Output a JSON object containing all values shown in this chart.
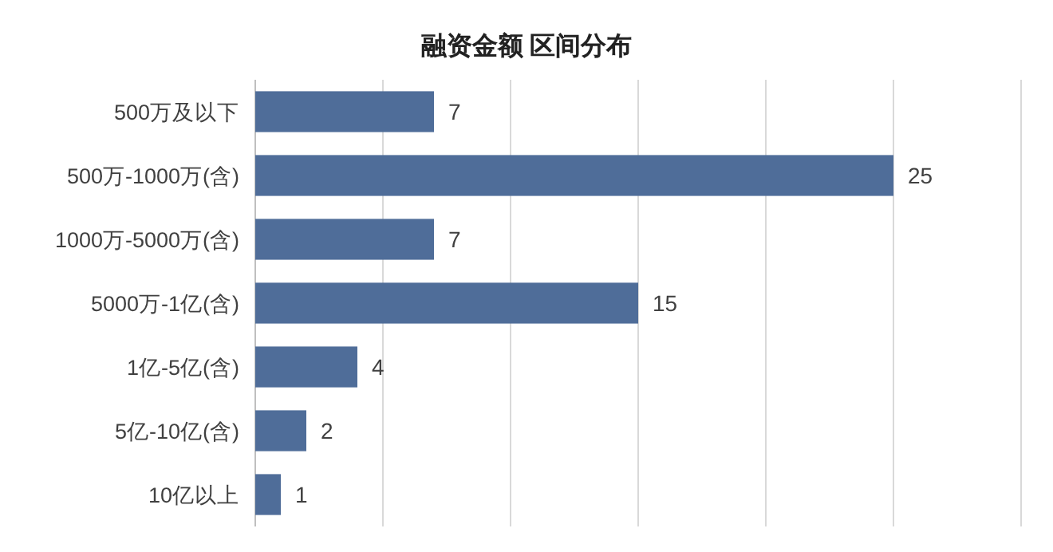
{
  "chart_data": {
    "type": "bar",
    "orientation": "horizontal",
    "title": "融资金额 区间分布",
    "categories": [
      "500万及以下",
      "500万-1000万(含)",
      "1000万-5000万(含)",
      "5000万-1亿(含)",
      "1亿-5亿(含)",
      "5亿-10亿(含)",
      "10亿以上"
    ],
    "values": [
      7,
      25,
      7,
      15,
      4,
      2,
      1
    ],
    "color": "#4f6d99",
    "xlim": [
      0,
      30
    ],
    "xticks": [
      {
        "value": 0,
        "label": null
      },
      {
        "value": 5,
        "label": null
      },
      {
        "value": 10,
        "label": null
      },
      {
        "value": 15,
        "label": null
      },
      {
        "value": 20,
        "label": null
      },
      {
        "value": 25,
        "label": null
      },
      {
        "value": 30,
        "label": null
      }
    ],
    "grid": "x",
    "data_labels": true,
    "tick_labels": "y"
  }
}
